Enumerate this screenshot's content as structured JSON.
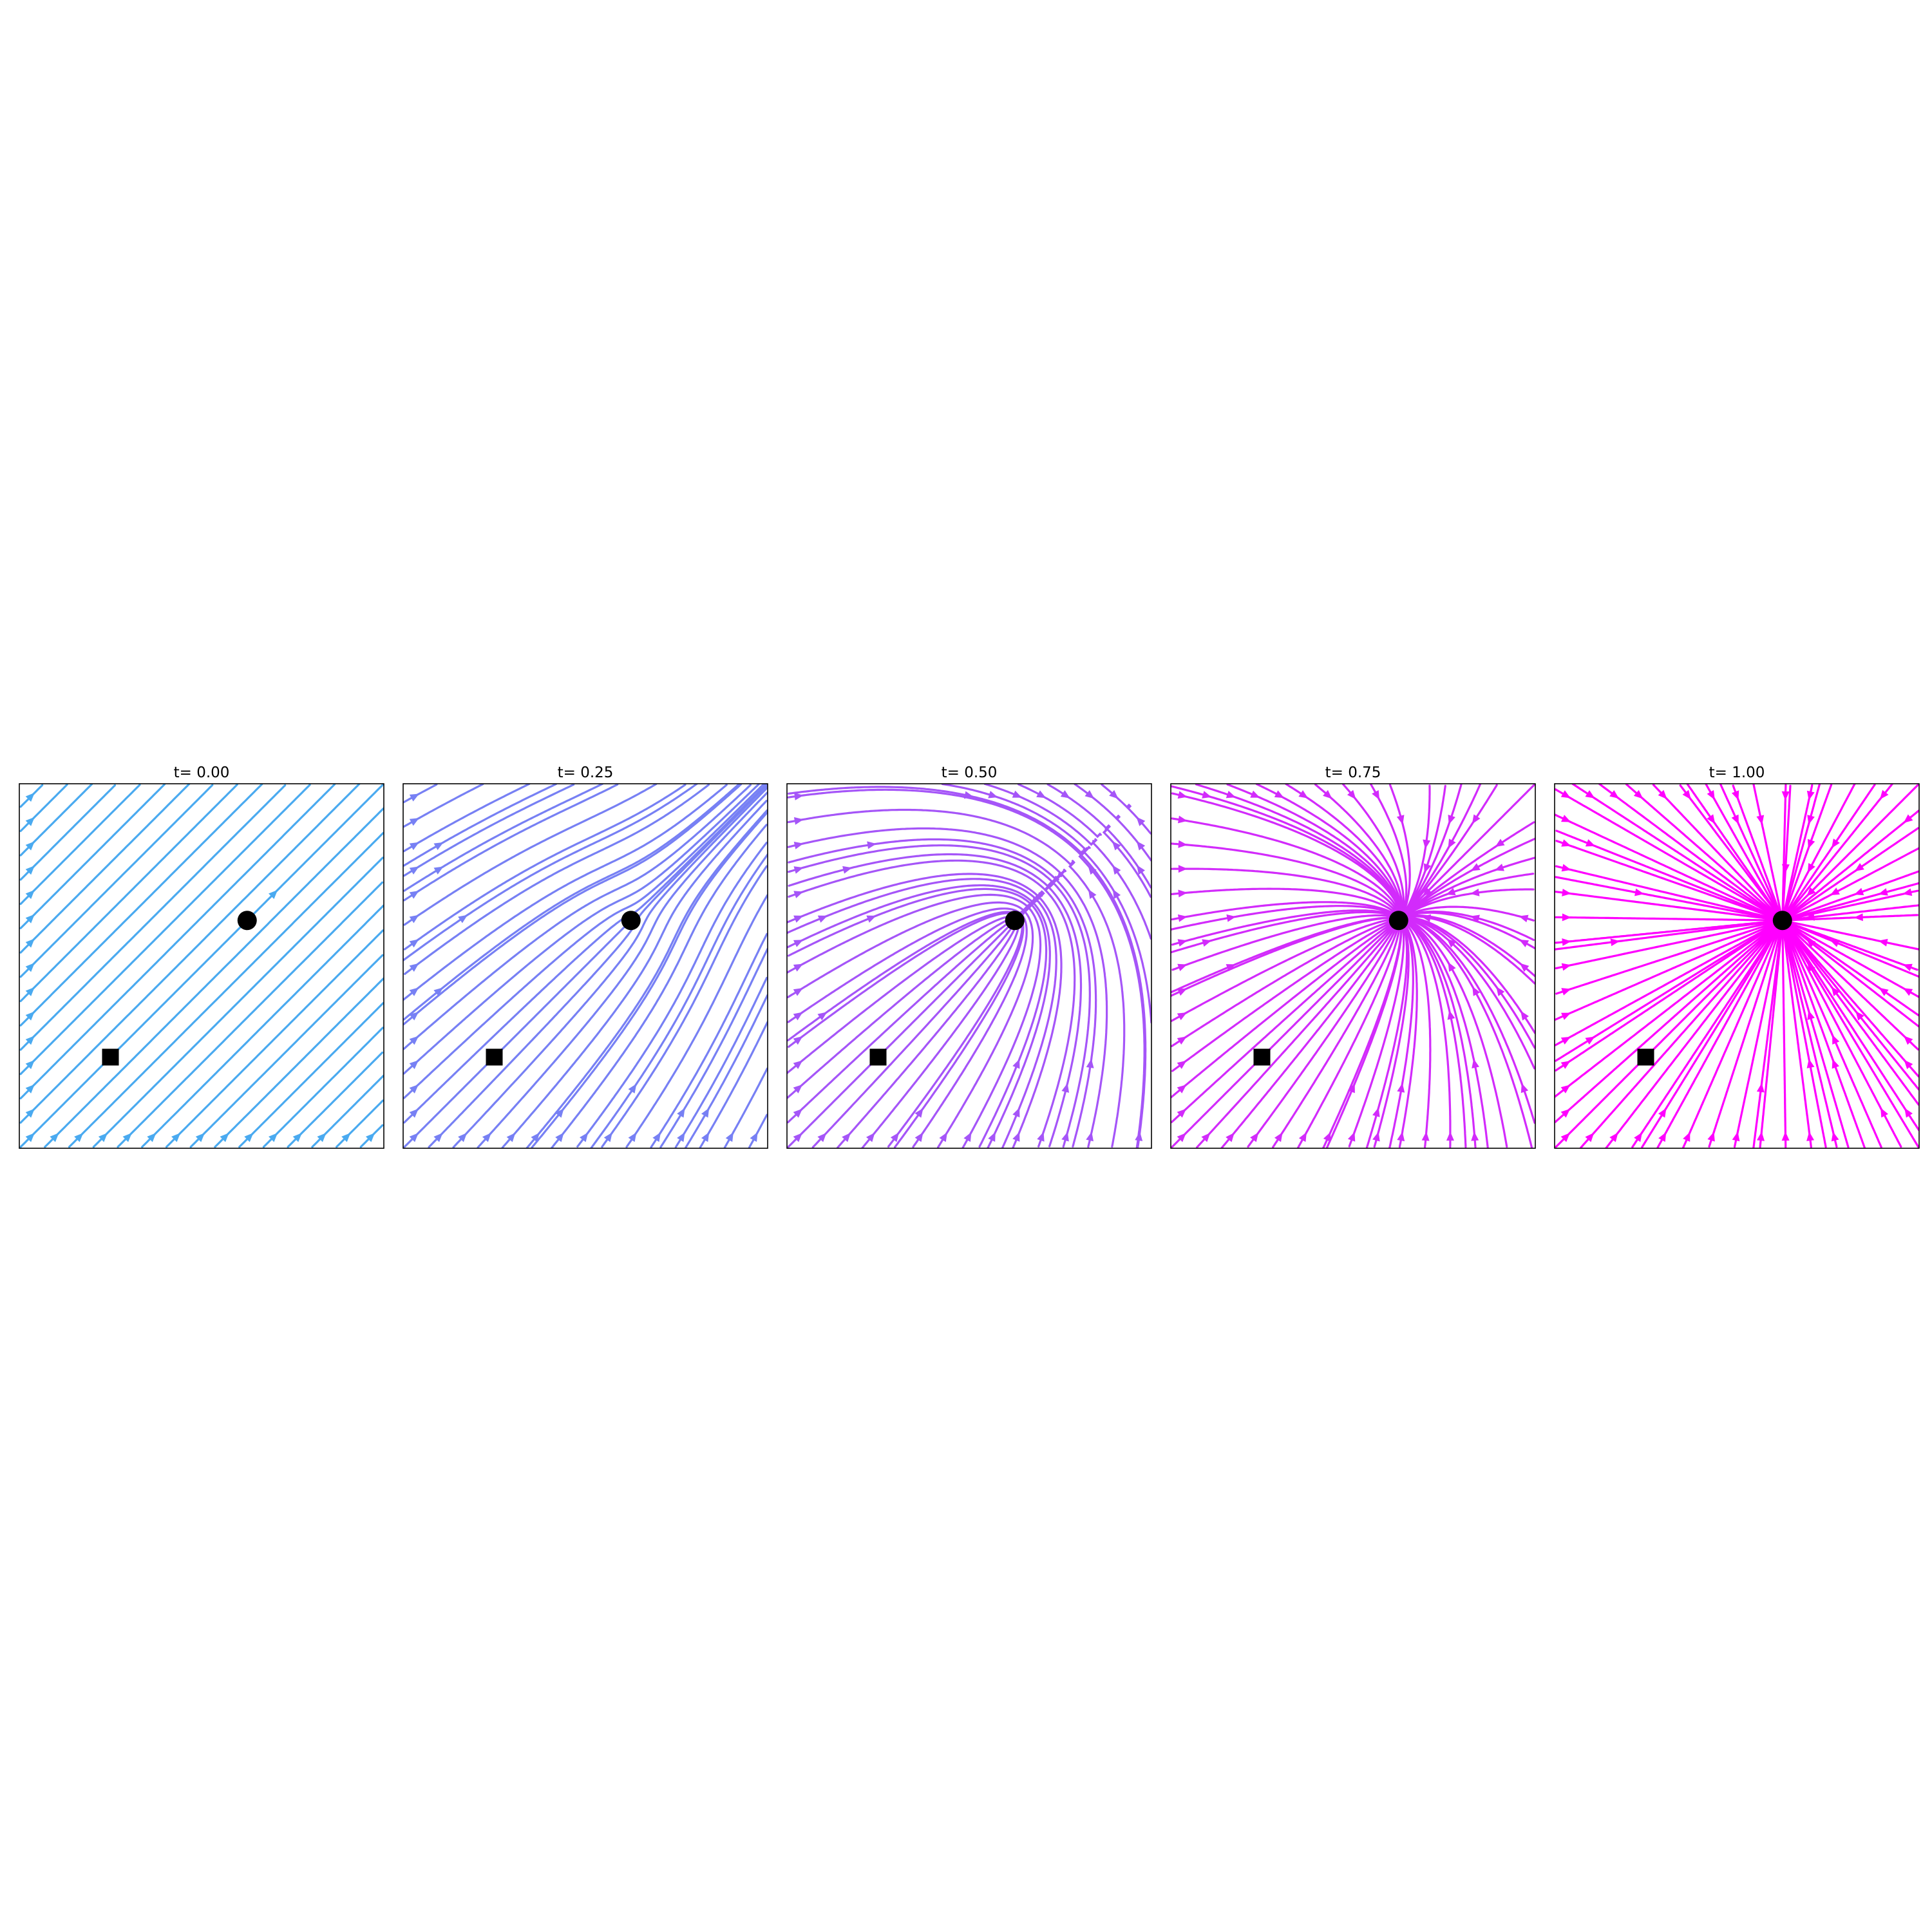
{
  "chart_data": {
    "type": "streamplot",
    "description_of_field": "Interpolated vector field between a uniform flow (t=0) and a radial flow converging on the target (t=1)",
    "axes": {
      "xlim": [
        0,
        1
      ],
      "ylim": [
        0,
        1
      ],
      "ticks_visible": false,
      "grid": false
    },
    "start_marker": {
      "x": 0.25,
      "y": 0.25,
      "shape": "square",
      "color": "#000000"
    },
    "target_marker": {
      "x": 0.625,
      "y": 0.625,
      "shape": "circle",
      "color": "#000000"
    },
    "uniform_direction": [
      1,
      1
    ],
    "color_start": "#4aaaf0",
    "color_end": "#ff00ff",
    "panels": [
      {
        "t": 0.0,
        "title": "t= 0.00"
      },
      {
        "t": 0.25,
        "title": "t= 0.25"
      },
      {
        "t": 0.5,
        "title": "t= 0.50"
      },
      {
        "t": 0.75,
        "title": "t= 0.75"
      },
      {
        "t": 1.0,
        "title": "t= 1.00"
      }
    ]
  }
}
